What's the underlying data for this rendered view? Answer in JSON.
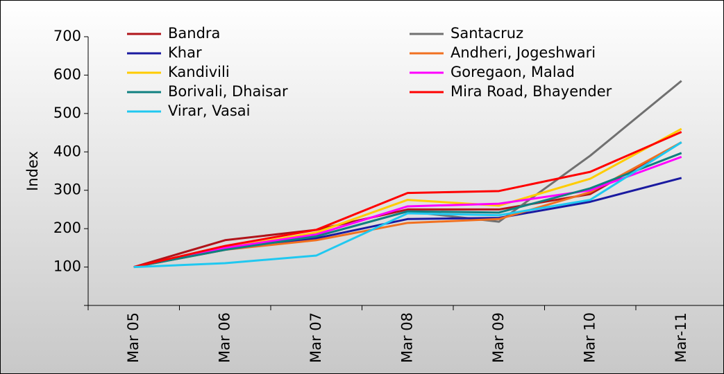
{
  "chart_data": {
    "type": "line",
    "y_label": "Index",
    "categories": [
      "Mar 05",
      "Mar 06",
      "Mar 07",
      "Mar 08",
      "Mar 09",
      "Mar 10",
      "Mar-11"
    ],
    "ylim": [
      0,
      700
    ],
    "yticks": [
      100,
      200,
      300,
      400,
      500,
      600,
      700
    ],
    "series": [
      {
        "name": "Bandra",
        "color": "#b0141a",
        "values": [
          100,
          170,
          197,
          250,
          250,
          290,
          425
        ]
      },
      {
        "name": "Santacruz",
        "color": "#707070",
        "values": [
          100,
          145,
          180,
          245,
          218,
          390,
          585
        ]
      },
      {
        "name": "Khar",
        "color": "#1a1aa0",
        "values": [
          100,
          150,
          175,
          225,
          228,
          270,
          332
        ]
      },
      {
        "name": "Andheri, Jogeshwari",
        "color": "#f07020",
        "values": [
          100,
          145,
          170,
          215,
          225,
          295,
          425
        ]
      },
      {
        "name": "Kandivili",
        "color": "#ffcc00",
        "values": [
          100,
          150,
          190,
          275,
          260,
          330,
          460
        ]
      },
      {
        "name": "Goregaon, Malad",
        "color": "#ff00ff",
        "values": [
          100,
          150,
          185,
          258,
          265,
          300,
          387
        ]
      },
      {
        "name": "Borivali, Dhaisar",
        "color": "#108080",
        "values": [
          100,
          145,
          180,
          245,
          242,
          305,
          397
        ]
      },
      {
        "name": "Mira Road, Bhayender",
        "color": "#ff0000",
        "values": [
          100,
          155,
          197,
          293,
          298,
          348,
          452
        ]
      },
      {
        "name": "Virar, Vasai",
        "color": "#20c8f0",
        "values": [
          100,
          110,
          130,
          240,
          235,
          275,
          425
        ]
      }
    ]
  }
}
